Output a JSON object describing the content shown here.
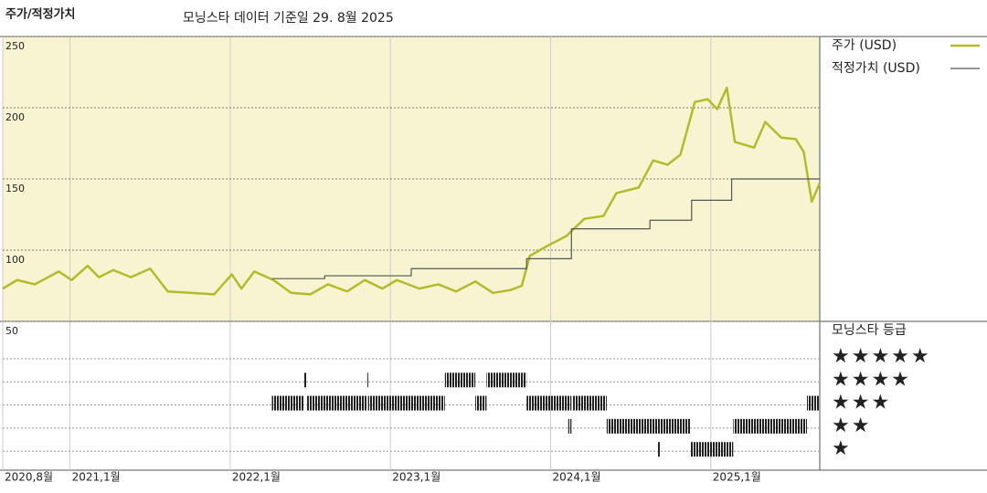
{
  "chart_data": {
    "type": "line",
    "title": "주가/적정가치",
    "subtitle": "모닝스타 데이터 기준일 29. 8월 2025",
    "xlim": [
      2020.58,
      2025.68
    ],
    "xticks": [
      {
        "value": 2020.58,
        "label": "2020,8월"
      },
      {
        "value": 2021.0,
        "label": "2021,1월"
      },
      {
        "value": 2022.0,
        "label": "2022,1월"
      },
      {
        "value": 2023.0,
        "label": "2023,1월"
      },
      {
        "value": 2024.0,
        "label": "2024,1월"
      },
      {
        "value": 2025.0,
        "label": "2025,1월"
      }
    ],
    "ylim": [
      50,
      250
    ],
    "yticks": [
      50,
      100,
      150,
      200,
      250
    ],
    "grid": true,
    "series": [
      {
        "name": "주가 (USD)",
        "color": "#b3bb2b",
        "x": [
          2020.58,
          2020.67,
          2020.78,
          2020.93,
          2021.01,
          2021.11,
          2021.18,
          2021.27,
          2021.38,
          2021.5,
          2021.61,
          2021.75,
          2021.9,
          2022.01,
          2022.07,
          2022.15,
          2022.27,
          2022.38,
          2022.5,
          2022.61,
          2022.73,
          2022.84,
          2022.95,
          2023.04,
          2023.18,
          2023.3,
          2023.41,
          2023.53,
          2023.64,
          2023.75,
          2023.82,
          2023.87,
          2023.98,
          2024.1,
          2024.21,
          2024.33,
          2024.41,
          2024.55,
          2024.64,
          2024.73,
          2024.81,
          2024.9,
          2024.98,
          2025.04,
          2025.1,
          2025.15,
          2025.27,
          2025.34,
          2025.44,
          2025.53,
          2025.58,
          2025.63,
          2025.68
        ],
        "values": [
          73,
          79,
          76,
          85,
          79,
          89,
          81,
          86,
          81,
          87,
          71,
          70,
          69,
          83,
          73,
          85,
          79,
          70,
          69,
          76,
          71,
          79,
          73,
          79,
          73,
          76,
          71,
          78,
          70,
          72,
          75,
          96,
          103,
          110,
          122,
          124,
          140,
          144,
          163,
          160,
          167,
          204,
          206,
          199,
          214,
          176,
          172,
          190,
          179,
          178,
          169,
          134,
          147
        ]
      },
      {
        "name": "적정가치 (USD)",
        "color": "#555555",
        "step": true,
        "x": [
          2022.26,
          2022.59,
          2023.13,
          2023.85,
          2024.13,
          2024.62,
          2024.88,
          2025.13,
          2025.68
        ],
        "values": [
          80,
          82,
          87,
          94,
          115,
          121,
          135,
          150,
          150
        ]
      }
    ],
    "rating": {
      "title": "모닝스타 등급",
      "levels": [
        5,
        4,
        3,
        2,
        1
      ],
      "labels": [
        "★★★★★",
        "★★★★",
        "★★★",
        "★★",
        "★"
      ],
      "periods": [
        {
          "start": 2022.46,
          "end": 2022.48,
          "stars": 4
        },
        {
          "start": 2022.85,
          "end": 2022.86,
          "stars": 4
        },
        {
          "start": 2023.34,
          "end": 2023.53,
          "stars": 4
        },
        {
          "start": 2023.6,
          "end": 2023.85,
          "stars": 4
        },
        {
          "start": 2022.26,
          "end": 2022.46,
          "stars": 3
        },
        {
          "start": 2022.48,
          "end": 2022.85,
          "stars": 3
        },
        {
          "start": 2022.86,
          "end": 2023.34,
          "stars": 3
        },
        {
          "start": 2023.53,
          "end": 2023.6,
          "stars": 3
        },
        {
          "start": 2023.85,
          "end": 2024.13,
          "stars": 3
        },
        {
          "start": 2024.14,
          "end": 2024.35,
          "stars": 3
        },
        {
          "start": 2025.6,
          "end": 2025.68,
          "stars": 3
        },
        {
          "start": 2024.11,
          "end": 2024.13,
          "stars": 2
        },
        {
          "start": 2024.35,
          "end": 2024.87,
          "stars": 2
        },
        {
          "start": 2025.14,
          "end": 2025.6,
          "stars": 2
        },
        {
          "start": 2024.67,
          "end": 2024.68,
          "stars": 1
        },
        {
          "start": 2024.87,
          "end": 2025.14,
          "stars": 1
        }
      ]
    }
  }
}
